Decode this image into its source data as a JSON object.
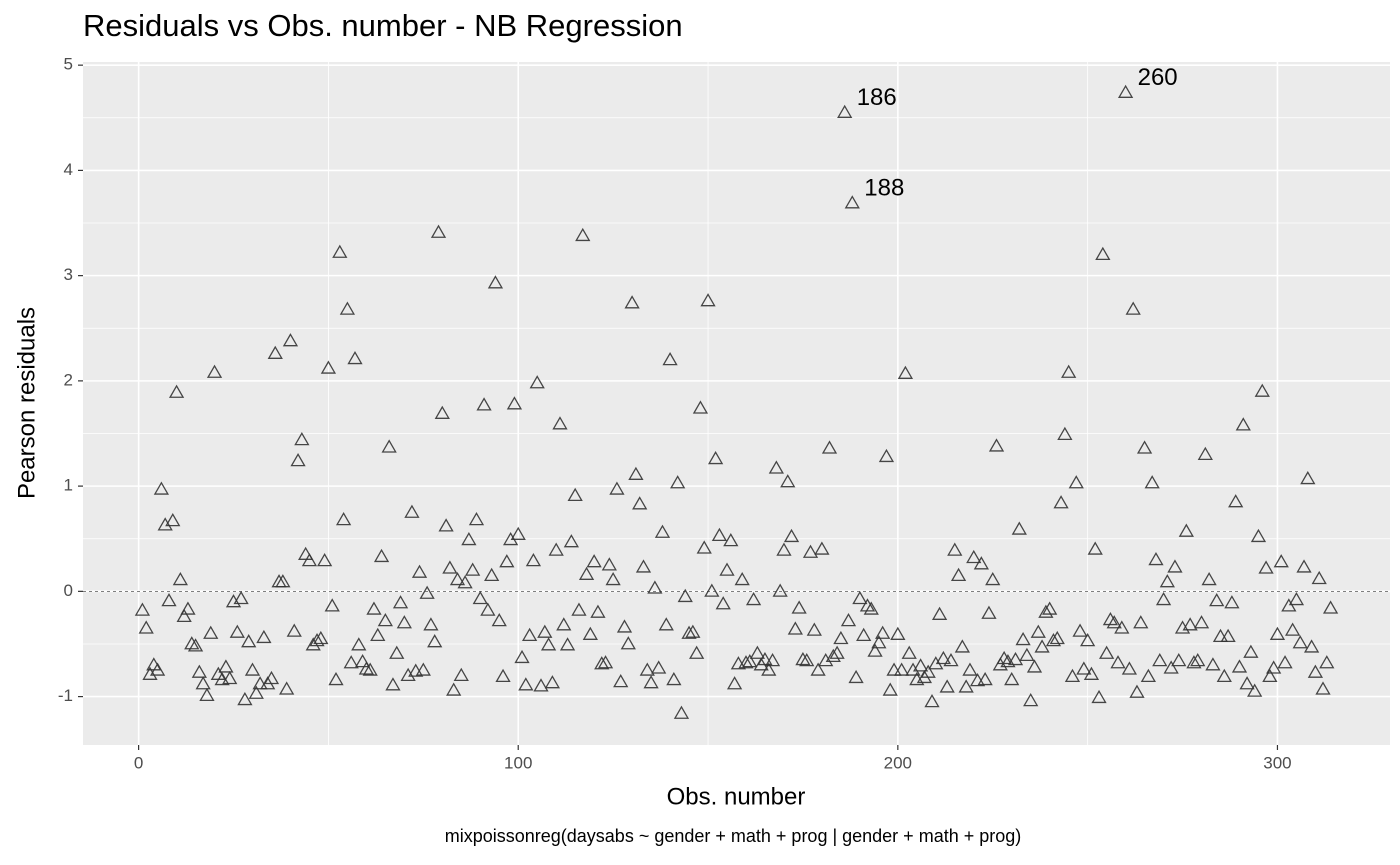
{
  "chart_data": {
    "type": "scatter",
    "title": "Residuals vs Obs. number - NB Regression",
    "xlabel": "Obs. number",
    "ylabel": "Pearson residuals",
    "caption": "mixpoissonreg(daysabs ~ gender + math + prog | gender + math + prog)",
    "x": [
      1,
      2,
      3,
      4,
      5,
      6,
      7,
      8,
      9,
      10,
      11,
      12,
      13,
      14,
      15,
      16,
      17,
      18,
      19,
      20,
      21,
      22,
      23,
      24,
      25,
      26,
      27,
      28,
      29,
      30,
      31,
      32,
      33,
      34,
      35,
      36,
      37,
      38,
      39,
      40,
      41,
      42,
      43,
      44,
      45,
      46,
      47,
      48,
      49,
      50,
      51,
      52,
      53,
      54,
      55,
      56,
      57,
      58,
      59,
      60,
      61,
      62,
      63,
      64,
      65,
      66,
      67,
      68,
      69,
      70,
      71,
      72,
      73,
      74,
      75,
      76,
      77,
      78,
      79,
      80,
      81,
      82,
      83,
      84,
      85,
      86,
      87,
      88,
      89,
      90,
      91,
      92,
      93,
      94,
      95,
      96,
      97,
      98,
      99,
      100,
      101,
      102,
      103,
      104,
      105,
      106,
      107,
      108,
      109,
      110,
      111,
      112,
      113,
      114,
      115,
      116,
      117,
      118,
      119,
      120,
      121,
      122,
      123,
      124,
      125,
      126,
      127,
      128,
      129,
      130,
      131,
      132,
      133,
      134,
      135,
      136,
      137,
      138,
      139,
      140,
      141,
      142,
      143,
      144,
      145,
      146,
      147,
      148,
      149,
      150,
      151,
      152,
      153,
      154,
      155,
      156,
      157,
      158,
      159,
      160,
      161,
      162,
      163,
      164,
      165,
      166,
      167,
      168,
      169,
      170,
      171,
      172,
      173,
      174,
      175,
      176,
      177,
      178,
      179,
      180,
      181,
      182,
      183,
      184,
      185,
      186,
      187,
      188,
      189,
      190,
      191,
      192,
      193,
      194,
      195,
      196,
      197,
      198,
      199,
      200,
      201,
      202,
      203,
      204,
      205,
      206,
      207,
      208,
      209,
      210,
      211,
      212,
      213,
      214,
      215,
      216,
      217,
      218,
      219,
      220,
      221,
      222,
      223,
      224,
      225,
      226,
      227,
      228,
      229,
      230,
      231,
      232,
      233,
      234,
      235,
      236,
      237,
      238,
      239,
      240,
      241,
      242,
      243,
      244,
      245,
      246,
      247,
      248,
      249,
      250,
      251,
      252,
      253,
      254,
      255,
      256,
      257,
      258,
      259,
      260,
      261,
      262,
      263,
      264,
      265,
      266,
      267,
      268,
      269,
      270,
      271,
      272,
      273,
      274,
      275,
      276,
      277,
      278,
      279,
      280,
      281,
      282,
      283,
      284,
      285,
      286,
      287,
      288,
      289,
      290,
      291,
      292,
      293,
      294,
      295,
      296,
      297,
      298,
      299,
      300,
      301,
      302,
      303,
      304,
      305,
      306,
      307,
      308,
      309,
      310,
      311,
      312,
      313,
      314
    ],
    "values": [
      -0.18,
      -0.35,
      -0.79,
      -0.7,
      -0.75,
      0.97,
      0.63,
      -0.09,
      0.67,
      1.89,
      0.11,
      -0.24,
      -0.17,
      -0.5,
      -0.52,
      -0.77,
      -0.88,
      -0.99,
      -0.4,
      2.08,
      -0.79,
      -0.84,
      -0.72,
      -0.83,
      -0.1,
      -0.39,
      -0.07,
      -1.03,
      -0.48,
      -0.75,
      -0.97,
      -0.88,
      -0.44,
      -0.88,
      -0.83,
      2.26,
      0.09,
      0.09,
      -0.93,
      2.38,
      -0.38,
      1.24,
      1.44,
      0.35,
      0.29,
      -0.51,
      -0.47,
      -0.45,
      0.29,
      2.12,
      -0.14,
      -0.84,
      3.22,
      0.68,
      2.68,
      -0.68,
      2.21,
      -0.51,
      -0.67,
      -0.74,
      -0.75,
      -0.17,
      -0.42,
      0.33,
      -0.28,
      1.37,
      -0.89,
      -0.59,
      -0.11,
      -0.3,
      -0.8,
      0.75,
      -0.76,
      0.18,
      -0.75,
      -0.02,
      -0.32,
      -0.48,
      3.41,
      1.69,
      0.62,
      0.22,
      -0.94,
      0.11,
      -0.8,
      0.08,
      0.49,
      0.2,
      0.68,
      -0.07,
      1.77,
      -0.18,
      0.15,
      2.93,
      -0.28,
      -0.81,
      0.28,
      0.49,
      1.78,
      0.54,
      -0.63,
      -0.89,
      -0.42,
      0.29,
      1.98,
      -0.9,
      -0.39,
      -0.51,
      -0.87,
      0.39,
      1.59,
      -0.32,
      -0.51,
      0.47,
      0.91,
      -0.18,
      3.38,
      0.16,
      -0.41,
      0.28,
      -0.2,
      -0.69,
      -0.68,
      0.25,
      0.11,
      0.97,
      -0.86,
      -0.34,
      -0.5,
      2.74,
      1.11,
      0.83,
      0.23,
      -0.75,
      -0.87,
      0.03,
      -0.73,
      0.56,
      -0.32,
      2.2,
      -0.84,
      1.03,
      -1.16,
      -0.05,
      -0.4,
      -0.39,
      -0.59,
      1.74,
      0.41,
      2.76,
      0.0,
      1.26,
      0.53,
      -0.12,
      0.2,
      0.48,
      -0.88,
      -0.69,
      0.11,
      -0.68,
      -0.67,
      -0.08,
      -0.59,
      -0.7,
      -0.65,
      -0.75,
      -0.66,
      1.17,
      0.0,
      0.39,
      1.04,
      0.52,
      -0.36,
      -0.16,
      -0.65,
      -0.66,
      0.37,
      -0.37,
      -0.75,
      0.4,
      -0.66,
      1.36,
      -0.62,
      -0.59,
      -0.45,
      4.55,
      -0.28,
      3.69,
      -0.82,
      -0.07,
      -0.42,
      -0.14,
      -0.17,
      -0.57,
      -0.49,
      -0.4,
      1.28,
      -0.94,
      -0.75,
      -0.41,
      -0.75,
      2.07,
      -0.59,
      -0.75,
      -0.84,
      -0.71,
      -0.82,
      -0.77,
      -1.05,
      -0.69,
      -0.22,
      -0.64,
      -0.91,
      -0.66,
      0.39,
      0.15,
      -0.53,
      -0.91,
      -0.75,
      0.32,
      -0.85,
      0.26,
      -0.84,
      -0.21,
      0.11,
      1.38,
      -0.7,
      -0.64,
      -0.67,
      -0.84,
      -0.65,
      0.59,
      -0.46,
      -0.61,
      -1.04,
      -0.72,
      -0.39,
      -0.53,
      -0.2,
      -0.17,
      -0.47,
      -0.45,
      0.84,
      1.49,
      2.08,
      -0.81,
      1.03,
      -0.38,
      -0.74,
      -0.47,
      -0.79,
      0.4,
      -1.01,
      3.2,
      -0.59,
      -0.27,
      -0.3,
      -0.68,
      -0.35,
      4.74,
      -0.74,
      2.68,
      -0.96,
      -0.3,
      1.36,
      -0.81,
      1.03,
      0.3,
      -0.66,
      -0.08,
      0.09,
      -0.73,
      0.23,
      -0.66,
      -0.35,
      0.57,
      -0.32,
      -0.68,
      -0.66,
      -0.3,
      1.3,
      0.11,
      -0.7,
      -0.09,
      -0.43,
      -0.81,
      -0.43,
      -0.11,
      0.85,
      -0.72,
      1.58,
      -0.88,
      -0.58,
      -0.95,
      0.52,
      1.9,
      0.22,
      -0.81,
      -0.73,
      -0.41,
      0.28,
      -0.68,
      -0.14,
      -0.37,
      -0.08,
      -0.49,
      0.23,
      1.07,
      -0.53,
      -0.77,
      0.12,
      -0.93,
      -0.68,
      -0.16
    ],
    "color": "#333333",
    "hline": 0,
    "annotations": [
      {
        "text": "186",
        "x": 186,
        "y": 4.55
      },
      {
        "text": "188",
        "x": 188,
        "y": 3.69
      },
      {
        "text": "260",
        "x": 260,
        "y": 4.74
      }
    ],
    "xlim": [
      -14.65,
      329.65
    ],
    "xticks": [
      0,
      100,
      200,
      300
    ],
    "ylim": [
      -1.46,
      5.03
    ],
    "yticks": [
      -1,
      0,
      1,
      2,
      3,
      4,
      5
    ],
    "grid": true
  }
}
